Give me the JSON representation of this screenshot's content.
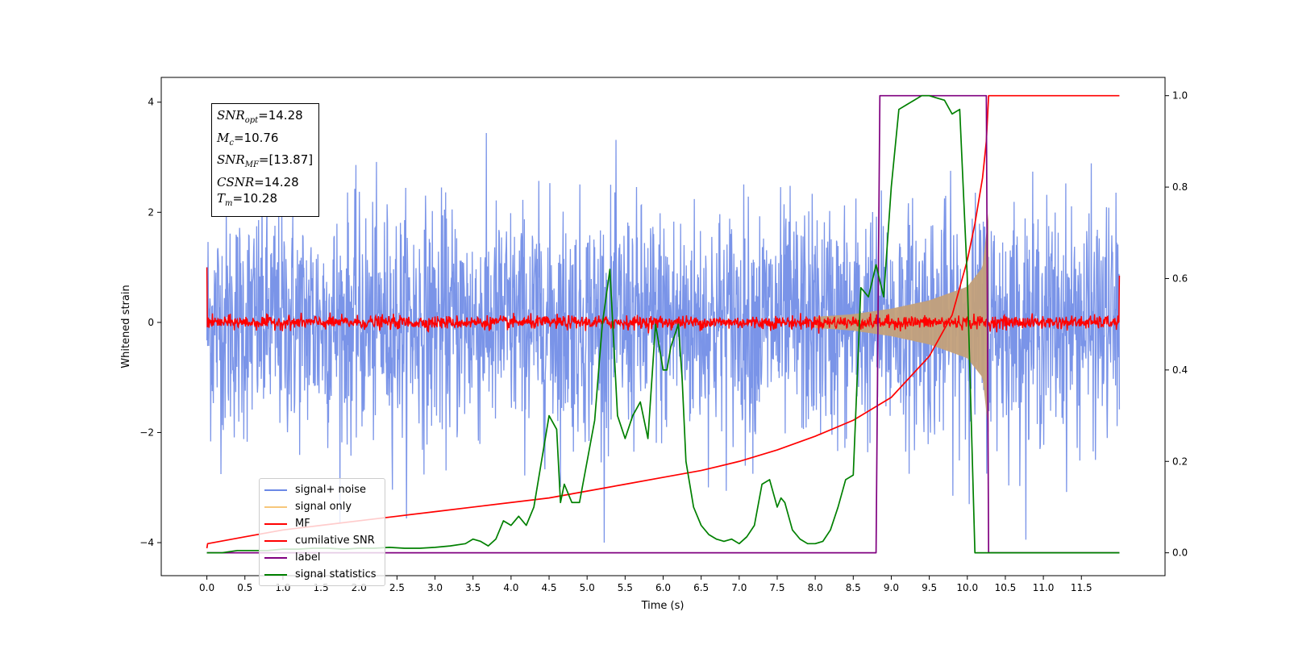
{
  "chart_data": {
    "type": "line",
    "title": "",
    "xlabel": "Time (s)",
    "ylabel": "Whitened strain",
    "y2label": "",
    "xlim": [
      -0.6,
      12.6
    ],
    "ylim": [
      -4.6,
      4.45
    ],
    "y2lim": [
      -0.05,
      1.04
    ],
    "x_ticks": [
      "0.0",
      "0.5",
      "1.0",
      "1.5",
      "2.0",
      "2.5",
      "3.0",
      "3.5",
      "4.0",
      "4.5",
      "5.0",
      "5.5",
      "6.0",
      "6.5",
      "7.0",
      "7.5",
      "8.0",
      "8.5",
      "9.0",
      "9.5",
      "10.0",
      "10.5",
      "11.0",
      "11.5"
    ],
    "y_ticks": [
      "−4",
      "−2",
      "0",
      "2",
      "4"
    ],
    "y2_ticks": [
      "0.0",
      "0.2",
      "0.4",
      "0.6",
      "0.8",
      "1.0"
    ],
    "info": [
      {
        "symbol": "SNR",
        "sub": "opt",
        "value": "=14.28"
      },
      {
        "symbol": "M",
        "sub": "c",
        "value": "=10.76"
      },
      {
        "symbol": "SNR",
        "sub": "MF",
        "value": "=[13.87]"
      },
      {
        "symbol": "CSNR",
        "sub": "",
        "value": "=14.28"
      },
      {
        "symbol": "T",
        "sub": "m",
        "value": "=10.28"
      }
    ],
    "legend_position": "lower-left",
    "colors": {
      "noise": "#6b88e6",
      "signal": "#f7c77a",
      "signal_fill": "#c3a07a",
      "mf": "#ff0000",
      "csnr": "#ff0000",
      "label": "#800080",
      "stats": "#008000"
    },
    "series": [
      {
        "name": "signal+ noise",
        "axis": "left",
        "color": "#6b88e6",
        "x_range": [
          0.0,
          12.0
        ],
        "amplitude_typical": 2.2,
        "amplitude_peak": 4.0
      },
      {
        "name": "signal only",
        "axis": "left",
        "color": "#f7c77a",
        "envelope_x": [
          8.0,
          8.5,
          9.0,
          9.5,
          10.0,
          10.2,
          10.28
        ],
        "envelope_y": [
          0.1,
          0.15,
          0.25,
          0.4,
          0.65,
          1.0,
          2.0
        ]
      },
      {
        "name": "MF",
        "axis": "left",
        "color": "#ff0000",
        "x_range": [
          0.0,
          12.0
        ],
        "noise_amplitude": 0.1
      },
      {
        "name": "cumilative SNR",
        "axis": "right",
        "color": "#ff0000",
        "x": [
          0.0,
          0.01,
          0.5,
          1.0,
          1.5,
          2.0,
          2.5,
          3.0,
          3.5,
          4.0,
          4.5,
          5.0,
          5.5,
          6.0,
          6.5,
          7.0,
          7.5,
          8.0,
          8.5,
          9.0,
          9.5,
          9.8,
          10.0,
          10.1,
          10.2,
          10.25,
          10.28,
          10.3,
          11.0,
          12.0
        ],
        "y": [
          0.01,
          0.02,
          0.035,
          0.05,
          0.06,
          0.07,
          0.08,
          0.09,
          0.1,
          0.11,
          0.12,
          0.135,
          0.15,
          0.165,
          0.18,
          0.2,
          0.225,
          0.255,
          0.29,
          0.34,
          0.43,
          0.52,
          0.64,
          0.72,
          0.82,
          0.9,
          1.0,
          1.0,
          1.0,
          1.0
        ]
      },
      {
        "name": "label",
        "axis": "right",
        "color": "#800080",
        "x": [
          0.0,
          8.8,
          8.85,
          10.25,
          10.28,
          12.0
        ],
        "y": [
          0.0,
          0.0,
          1.0,
          1.0,
          0.0,
          0.0
        ]
      },
      {
        "name": "signal statistics",
        "axis": "right",
        "color": "#008000",
        "x": [
          0.0,
          0.2,
          0.4,
          0.6,
          0.8,
          1.0,
          1.2,
          1.4,
          1.6,
          1.8,
          2.0,
          2.2,
          2.4,
          2.6,
          2.8,
          3.0,
          3.2,
          3.4,
          3.5,
          3.6,
          3.7,
          3.8,
          3.9,
          4.0,
          4.1,
          4.2,
          4.3,
          4.4,
          4.5,
          4.6,
          4.65,
          4.7,
          4.8,
          4.9,
          5.0,
          5.1,
          5.2,
          5.3,
          5.4,
          5.5,
          5.6,
          5.7,
          5.8,
          5.9,
          6.0,
          6.05,
          6.1,
          6.2,
          6.25,
          6.3,
          6.4,
          6.5,
          6.6,
          6.7,
          6.8,
          6.9,
          7.0,
          7.1,
          7.2,
          7.3,
          7.4,
          7.5,
          7.55,
          7.6,
          7.7,
          7.8,
          7.9,
          8.0,
          8.1,
          8.2,
          8.3,
          8.4,
          8.5,
          8.6,
          8.7,
          8.8,
          8.9,
          9.0,
          9.1,
          9.2,
          9.3,
          9.4,
          9.5,
          9.6,
          9.7,
          9.8,
          9.9,
          10.0,
          10.1,
          10.2,
          10.25,
          10.3,
          10.4,
          10.6,
          10.8,
          11.0,
          11.5,
          12.0
        ],
        "y": [
          0.0,
          0.0,
          0.005,
          0.005,
          0.005,
          0.008,
          0.008,
          0.01,
          0.01,
          0.008,
          0.01,
          0.01,
          0.012,
          0.01,
          0.01,
          0.012,
          0.015,
          0.02,
          0.03,
          0.025,
          0.015,
          0.03,
          0.07,
          0.06,
          0.08,
          0.06,
          0.1,
          0.2,
          0.3,
          0.27,
          0.11,
          0.15,
          0.11,
          0.11,
          0.2,
          0.29,
          0.5,
          0.62,
          0.3,
          0.25,
          0.3,
          0.33,
          0.25,
          0.5,
          0.4,
          0.4,
          0.45,
          0.5,
          0.38,
          0.2,
          0.1,
          0.06,
          0.04,
          0.03,
          0.025,
          0.03,
          0.02,
          0.035,
          0.06,
          0.15,
          0.16,
          0.1,
          0.12,
          0.11,
          0.05,
          0.03,
          0.02,
          0.02,
          0.025,
          0.05,
          0.1,
          0.16,
          0.17,
          0.58,
          0.56,
          0.63,
          0.56,
          0.8,
          0.97,
          0.98,
          0.99,
          1.0,
          1.0,
          0.995,
          0.99,
          0.96,
          0.97,
          0.6,
          0.0,
          0.0,
          0.0,
          0.0,
          0.0,
          0.0,
          0.0,
          0.0,
          0.0,
          0.0
        ]
      }
    ]
  }
}
